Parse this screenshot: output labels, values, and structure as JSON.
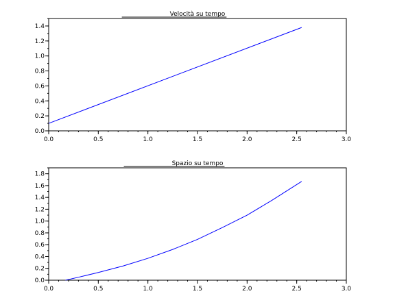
{
  "chart_data": [
    {
      "type": "line",
      "title": "Velocità su tempo",
      "xlabel": "",
      "ylabel": "",
      "xlim": [
        0.0,
        3.0
      ],
      "ylim": [
        0.0,
        1.5
      ],
      "xticks": [
        "0.0",
        "0.5",
        "1.0",
        "1.5",
        "2.0",
        "2.5",
        "3.0"
      ],
      "xtick_values": [
        0.0,
        0.5,
        1.0,
        1.5,
        2.0,
        2.5,
        3.0
      ],
      "yticks": [
        "0.0",
        "0.2",
        "0.4",
        "0.6",
        "0.8",
        "1.0",
        "1.2",
        "1.4"
      ],
      "ytick_values": [
        0.0,
        0.2,
        0.4,
        0.6,
        0.8,
        1.0,
        1.2,
        1.4
      ],
      "y_minor_step": 0.1,
      "x_minor_step": 0.1,
      "grid": false,
      "series": [
        {
          "color": "#0000ff",
          "x": [
            0.0,
            2.55
          ],
          "y": [
            0.1,
            1.38
          ]
        }
      ]
    },
    {
      "type": "line",
      "title": "Spazio su tempo",
      "xlabel": "",
      "ylabel": "",
      "xlim": [
        0.0,
        3.0
      ],
      "ylim": [
        0.0,
        1.9
      ],
      "xticks": [
        "0.0",
        "0.5",
        "1.0",
        "1.5",
        "2.0",
        "2.5",
        "3.0"
      ],
      "xtick_values": [
        0.0,
        0.5,
        1.0,
        1.5,
        2.0,
        2.5,
        3.0
      ],
      "yticks": [
        "0.0",
        "0.2",
        "0.4",
        "0.6",
        "0.8",
        "1.0",
        "1.2",
        "1.4",
        "1.6",
        "1.8"
      ],
      "ytick_values": [
        0.0,
        0.2,
        0.4,
        0.6,
        0.8,
        1.0,
        1.2,
        1.4,
        1.6,
        1.8
      ],
      "y_minor_step": 0.1,
      "x_minor_step": 0.1,
      "grid": false,
      "series": [
        {
          "color": "#0000ff",
          "x": [
            0.17,
            0.3,
            0.5,
            0.75,
            1.0,
            1.25,
            1.5,
            1.75,
            2.0,
            2.25,
            2.55
          ],
          "y": [
            0.0,
            0.05,
            0.13,
            0.24,
            0.37,
            0.52,
            0.69,
            0.89,
            1.1,
            1.35,
            1.67
          ]
        }
      ]
    }
  ]
}
